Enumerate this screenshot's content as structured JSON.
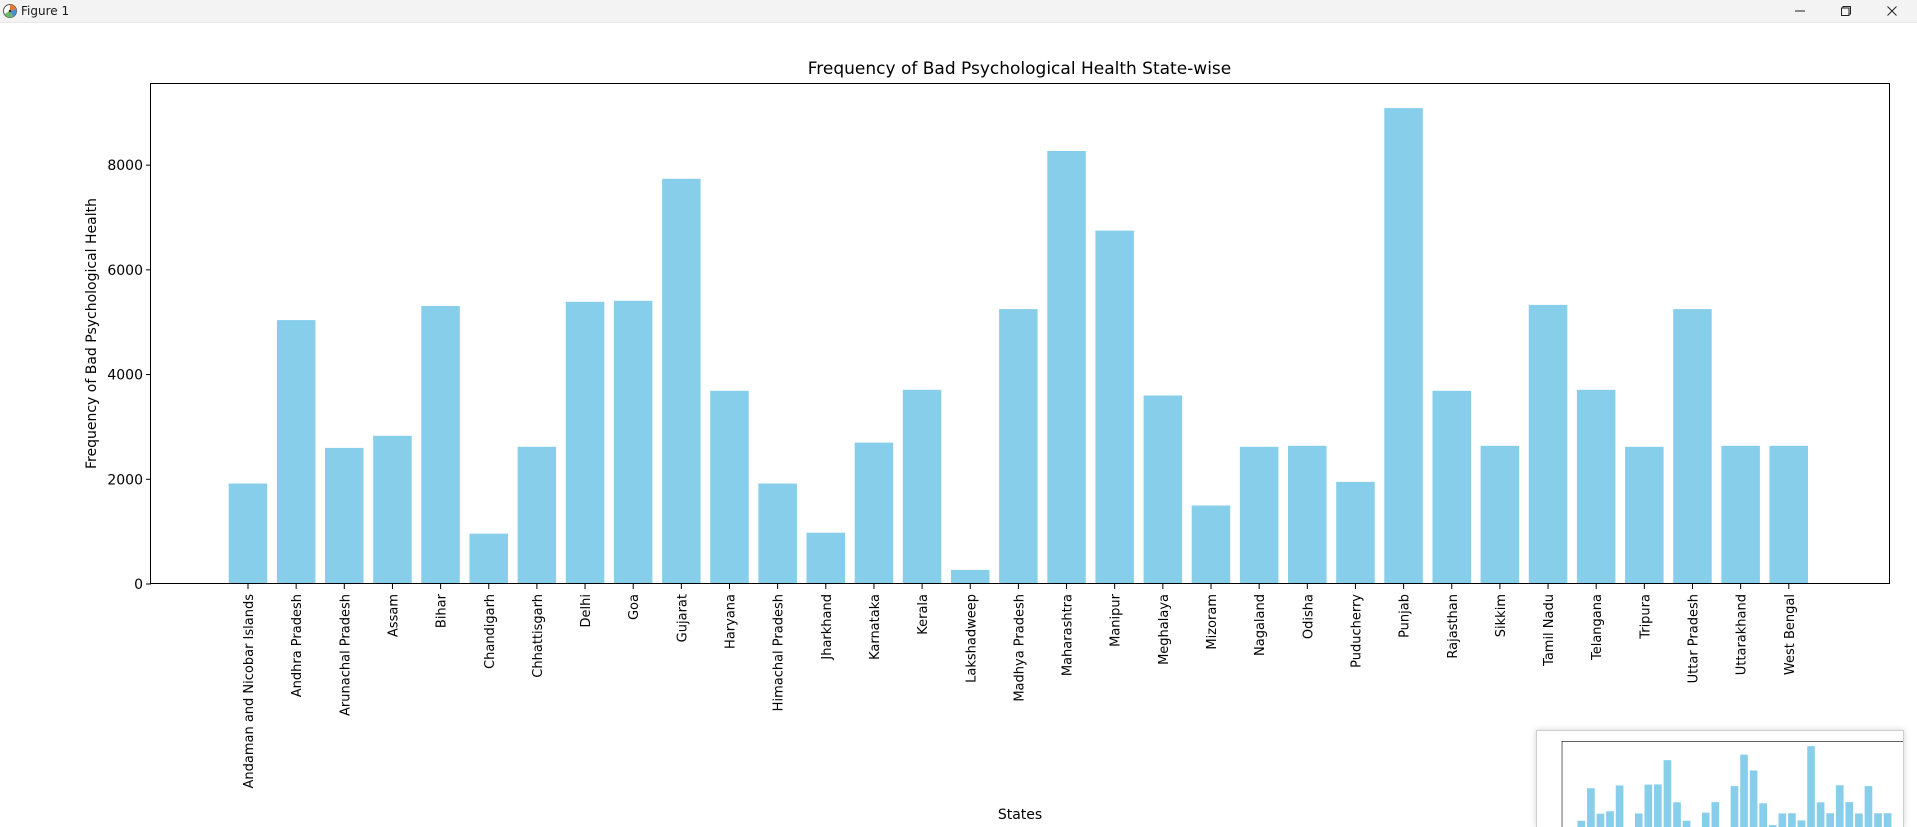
{
  "window": {
    "title": "Figure 1",
    "icons": {
      "app": "matplotlib-figure-icon",
      "minimize": "minimize-icon",
      "maximize": "maximize-icon",
      "close": "close-icon"
    }
  },
  "chart_data": {
    "type": "bar",
    "title": "Frequency of Bad Psychological Health State-wise",
    "xlabel": "States",
    "ylabel": "Frequency of Bad Psychological Health",
    "color": "#87ceeb",
    "ylim": [
      0,
      9550
    ],
    "yticks": [
      0,
      2000,
      4000,
      6000,
      8000
    ],
    "grid": false,
    "categories": [
      "Andaman and Nicobar Islands",
      "Andhra Pradesh",
      "Arunachal Pradesh",
      "Assam",
      "Bihar",
      "Chandigarh",
      "Chhattisgarh",
      "Delhi",
      "Goa",
      "Gujarat",
      "Haryana",
      "Himachal Pradesh",
      "Jharkhand",
      "Karnataka",
      "Kerala",
      "Lakshadweep",
      "Madhya Pradesh",
      "Maharashtra",
      "Manipur",
      "Meghalaya",
      "Mizoram",
      "Nagaland",
      "Odisha",
      "Puducherry",
      "Punjab",
      "Rajasthan",
      "Sikkim",
      "Tamil Nadu",
      "Telangana",
      "Tripura",
      "Uttar Pradesh",
      "Uttarakhand",
      "West Bengal"
    ],
    "values": [
      1920,
      5040,
      2600,
      2830,
      5310,
      960,
      2620,
      5390,
      5410,
      7740,
      3690,
      1920,
      980,
      2700,
      3710,
      270,
      5250,
      8270,
      6750,
      3600,
      1500,
      2620,
      2640,
      1950,
      9090,
      3690,
      2640,
      5330,
      3710,
      2620,
      5250,
      2640,
      2640
    ]
  }
}
